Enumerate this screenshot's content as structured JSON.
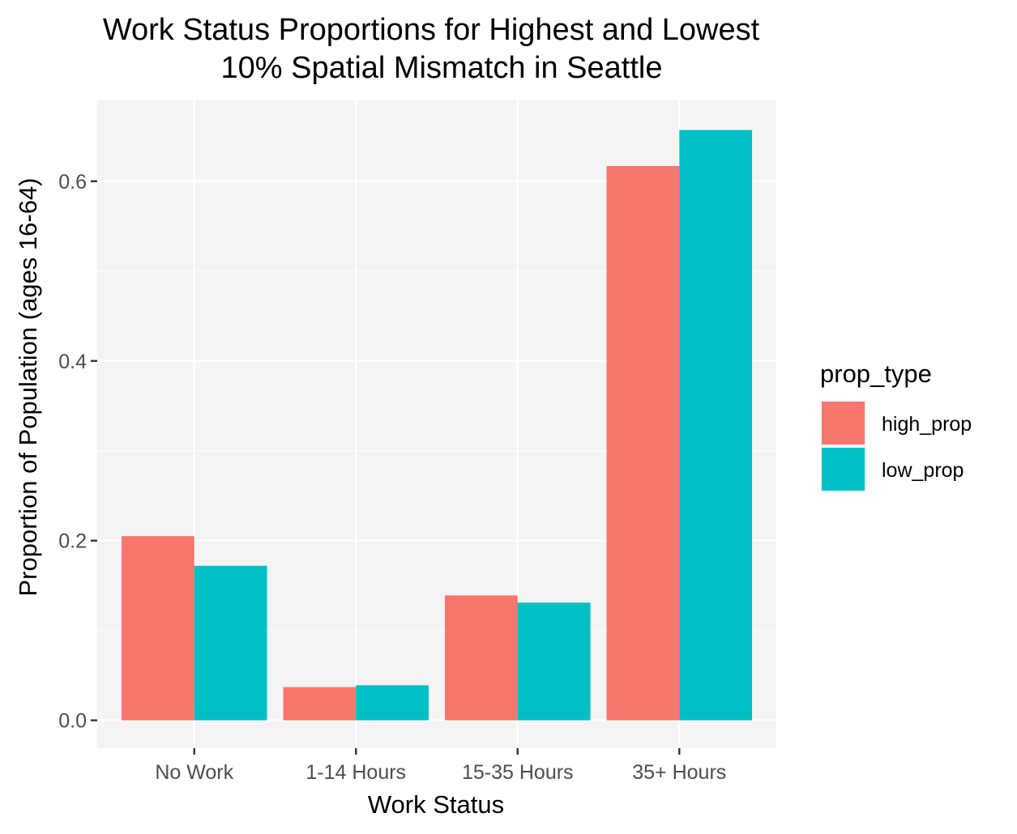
{
  "chart_data": {
    "type": "bar",
    "title_lines": [
      "Work Status Proportions for Highest and Lowest",
      "10% Spatial Mismatch in Seattle"
    ],
    "xlabel": "Work Status",
    "ylabel": "Proportion of Population (ages 16-64)",
    "categories": [
      "No Work",
      "1-14 Hours",
      "15-35 Hours",
      "35+ Hours"
    ],
    "series": [
      {
        "name": "high_prop",
        "color": "#F8766D",
        "values": [
          0.205,
          0.037,
          0.139,
          0.617
        ]
      },
      {
        "name": "low_prop",
        "color": "#00BFC4",
        "values": [
          0.172,
          0.039,
          0.131,
          0.657
        ]
      }
    ],
    "y_ticks": [
      0.0,
      0.2,
      0.4,
      0.6
    ],
    "y_tick_labels": [
      "0.0",
      "0.2",
      "0.4",
      "0.6"
    ],
    "ylim": [
      -0.031,
      0.69
    ],
    "grid": true,
    "legend": {
      "title": "prop_type",
      "position": "right"
    }
  }
}
